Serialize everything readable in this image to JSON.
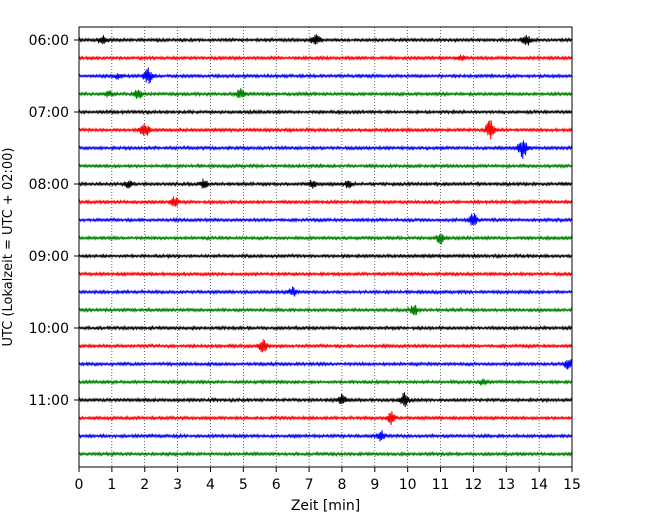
{
  "chart_data": {
    "type": "line",
    "title": "",
    "xlabel": "Zeit  [min]",
    "ylabel": "UTC (Lokalzeit = UTC + 02:00)",
    "xlim": [
      0,
      15
    ],
    "x_ticks": [
      0,
      1,
      2,
      3,
      4,
      5,
      6,
      7,
      8,
      9,
      10,
      11,
      12,
      13,
      14,
      15
    ],
    "x_grid": "dotted-vertical",
    "y_tick_labels": [
      "06:00",
      "07:00",
      "08:00",
      "09:00",
      "10:00",
      "11:00"
    ],
    "row_interval_min": 15,
    "row_count": 24,
    "color_cycle": [
      "#000000",
      "#ff0000",
      "#0000ff",
      "#008000"
    ],
    "events": [
      {
        "row": 0,
        "x": 0.7,
        "amp": 0.9
      },
      {
        "row": 0,
        "x": 7.2,
        "amp": 1.3
      },
      {
        "row": 0,
        "x": 13.6,
        "amp": 1.2
      },
      {
        "row": 1,
        "x": 11.6,
        "amp": 0.6
      },
      {
        "row": 2,
        "x": 1.2,
        "amp": 0.6
      },
      {
        "row": 2,
        "x": 2.1,
        "amp": 1.6
      },
      {
        "row": 3,
        "x": 0.9,
        "amp": 0.6
      },
      {
        "row": 3,
        "x": 1.8,
        "amp": 1.0
      },
      {
        "row": 3,
        "x": 4.9,
        "amp": 1.0
      },
      {
        "row": 5,
        "x": 2.0,
        "amp": 1.7
      },
      {
        "row": 5,
        "x": 12.5,
        "amp": 1.9
      },
      {
        "row": 6,
        "x": 13.5,
        "amp": 2.4
      },
      {
        "row": 8,
        "x": 1.5,
        "amp": 0.7
      },
      {
        "row": 8,
        "x": 3.8,
        "amp": 0.9
      },
      {
        "row": 8,
        "x": 7.1,
        "amp": 0.8
      },
      {
        "row": 8,
        "x": 8.2,
        "amp": 0.7
      },
      {
        "row": 9,
        "x": 2.9,
        "amp": 1.1
      },
      {
        "row": 10,
        "x": 12.0,
        "amp": 1.4
      },
      {
        "row": 11,
        "x": 11.0,
        "amp": 1.2
      },
      {
        "row": 14,
        "x": 6.5,
        "amp": 0.9
      },
      {
        "row": 15,
        "x": 10.2,
        "amp": 1.1
      },
      {
        "row": 17,
        "x": 5.6,
        "amp": 1.2
      },
      {
        "row": 18,
        "x": 14.9,
        "amp": 1.2
      },
      {
        "row": 19,
        "x": 12.3,
        "amp": 0.6
      },
      {
        "row": 20,
        "x": 8.0,
        "amp": 1.0
      },
      {
        "row": 20,
        "x": 9.9,
        "amp": 1.5
      },
      {
        "row": 21,
        "x": 9.5,
        "amp": 1.3
      },
      {
        "row": 22,
        "x": 9.2,
        "amp": 1.0
      }
    ]
  }
}
